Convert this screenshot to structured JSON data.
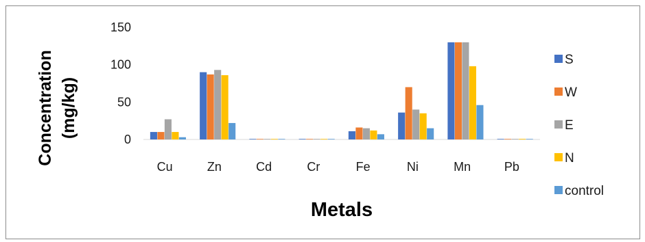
{
  "chart_data": {
    "type": "bar",
    "categories": [
      "Cu",
      "Zn",
      "Cd",
      "Cr",
      "Fe",
      "Ni",
      "Mn",
      "Pb"
    ],
    "series": [
      {
        "name": "S",
        "color": "#4472C4",
        "values": [
          10,
          90,
          0.2,
          0.2,
          11,
          36,
          130,
          0.3
        ]
      },
      {
        "name": "W",
        "color": "#ED7D31",
        "values": [
          10,
          87,
          0.2,
          0.2,
          16,
          70,
          130,
          0.3
        ]
      },
      {
        "name": "E",
        "color": "#A5A5A5",
        "values": [
          27,
          93,
          0.2,
          0.2,
          15,
          40,
          130,
          0.3
        ]
      },
      {
        "name": "N",
        "color": "#FFC000",
        "values": [
          10,
          86,
          0.2,
          0.2,
          12,
          35,
          98,
          0.8
        ]
      },
      {
        "name": "control",
        "color": "#5B9BD5",
        "values": [
          3,
          22,
          0.1,
          0.1,
          7,
          15,
          46,
          0.2
        ]
      }
    ],
    "y_ticks": [
      "0",
      "50",
      "100",
      "150"
    ],
    "ylim": [
      0,
      150
    ],
    "xlabel": "Metals",
    "ylabel_lines": [
      "Concentration",
      "(mg/kg)"
    ],
    "legend_position": "right",
    "grid": false
  }
}
